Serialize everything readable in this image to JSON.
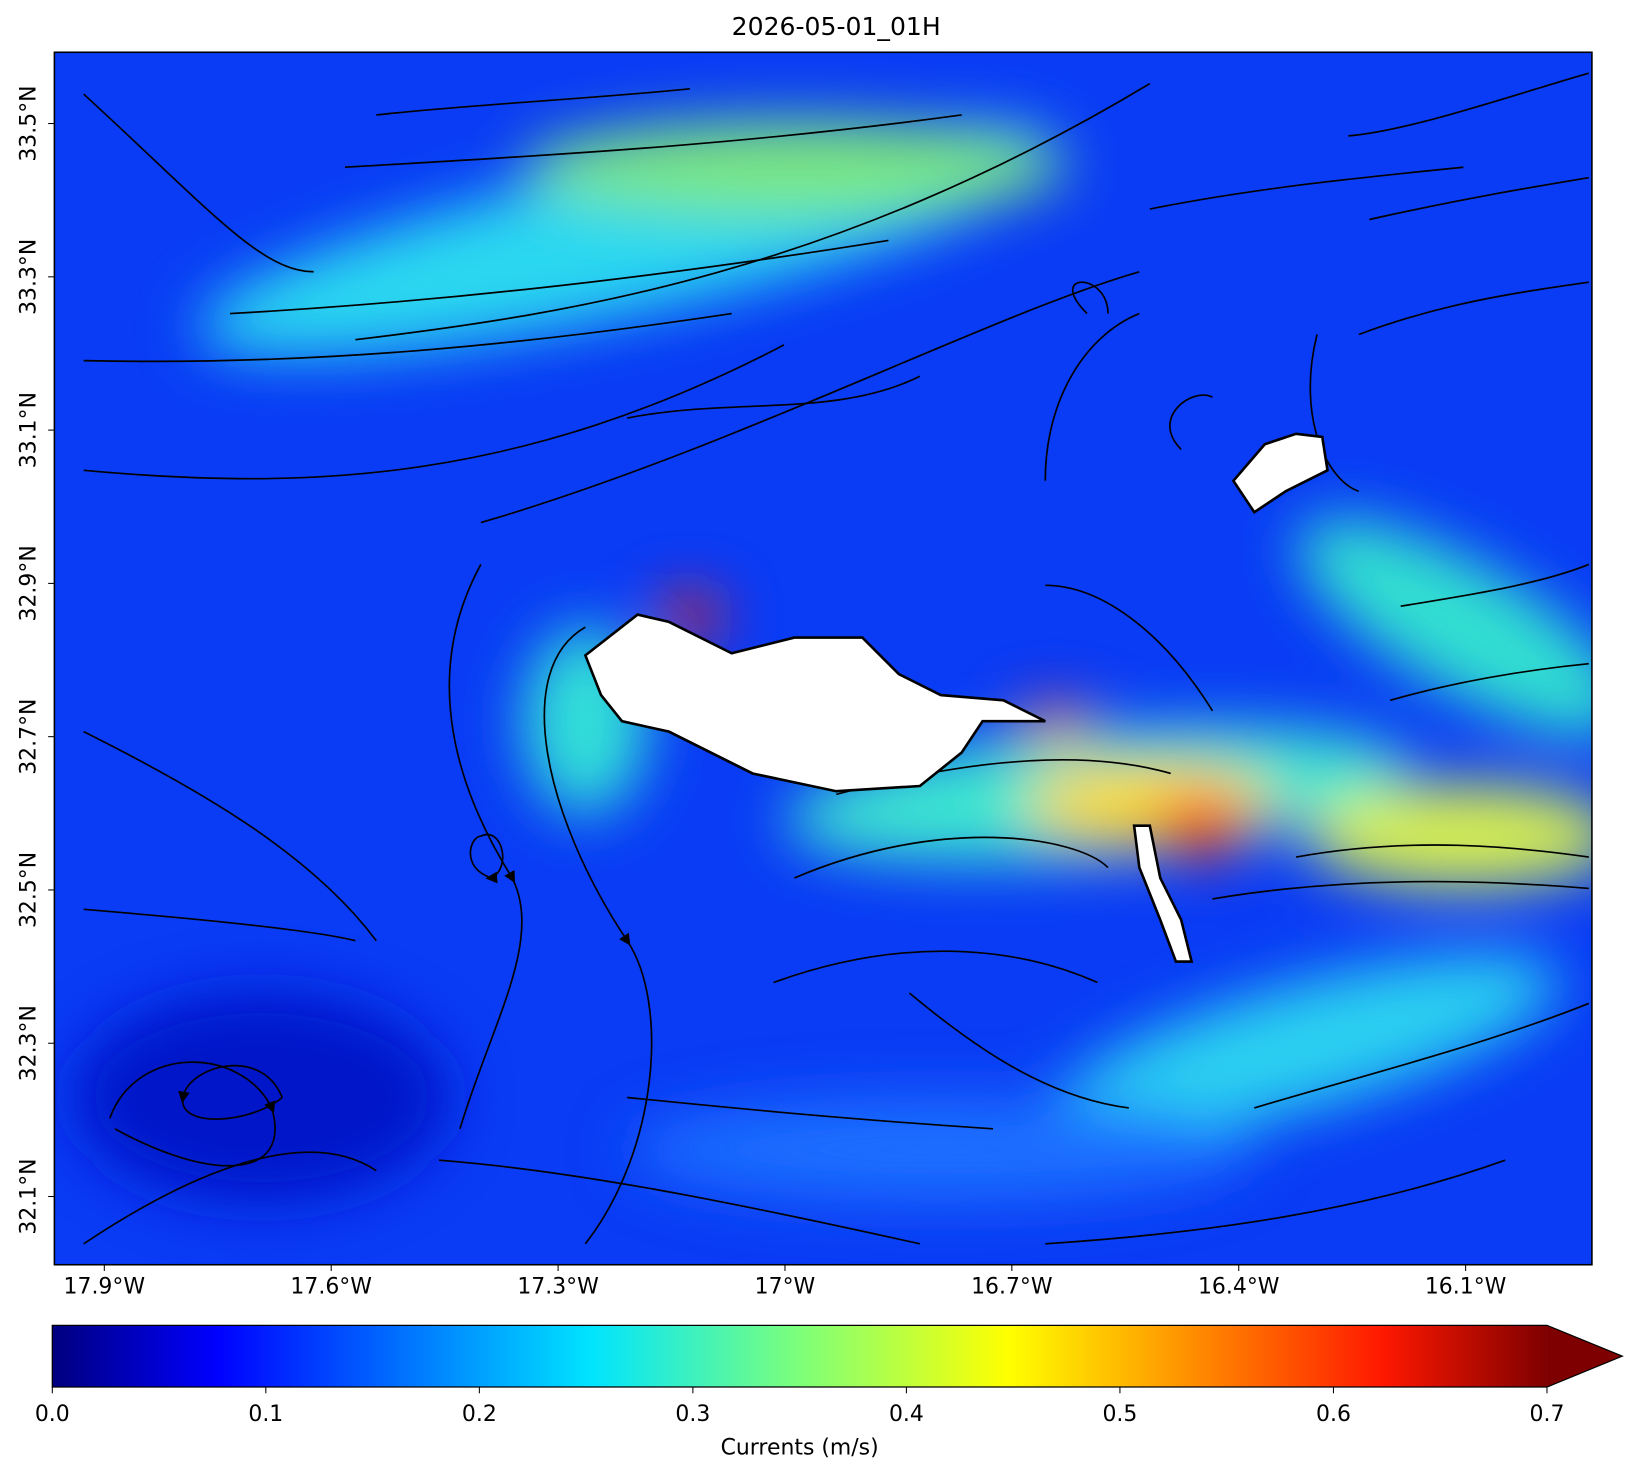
{
  "chart_data": {
    "type": "map",
    "title": "2026-05-01_01H",
    "xlim": [
      -17.966,
      -15.933
    ],
    "ylim": [
      32.011,
      33.593
    ],
    "xticks": [
      {
        "value": -17.9,
        "label": "17.9°W"
      },
      {
        "value": -17.6,
        "label": "17.6°W"
      },
      {
        "value": -17.3,
        "label": "17.3°W"
      },
      {
        "value": -17.0,
        "label": "17°W"
      },
      {
        "value": -16.7,
        "label": "16.7°W"
      },
      {
        "value": -16.4,
        "label": "16.4°W"
      },
      {
        "value": -16.1,
        "label": "16.1°W"
      }
    ],
    "yticks": [
      {
        "value": 32.1,
        "label": "32.1°N"
      },
      {
        "value": 32.3,
        "label": "32.3°N"
      },
      {
        "value": 32.5,
        "label": "32.5°N"
      },
      {
        "value": 32.7,
        "label": "32.7°N"
      },
      {
        "value": 32.9,
        "label": "32.9°N"
      },
      {
        "value": 33.1,
        "label": "33.1°N"
      },
      {
        "value": 33.3,
        "label": "33.3°N"
      },
      {
        "value": 33.5,
        "label": "33.5°N"
      }
    ],
    "colorbar": {
      "label": "Currents (m/s)",
      "lim": [
        0,
        0.7
      ],
      "ticks": [
        {
          "value": 0,
          "label": "0.0"
        },
        0.1,
        0.2,
        0.3,
        0.4,
        0.5,
        0.6,
        0.7
      ]
    }
  }
}
